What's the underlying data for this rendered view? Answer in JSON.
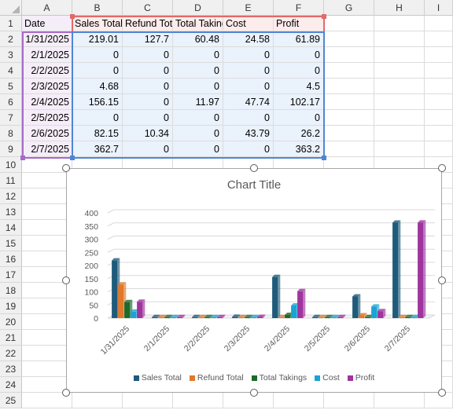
{
  "sheet": {
    "columns": [
      "A",
      "B",
      "C",
      "D",
      "E",
      "F",
      "G",
      "H",
      "I"
    ],
    "rows": [
      "1",
      "2",
      "3",
      "4",
      "5",
      "6",
      "7",
      "8",
      "9",
      "10",
      "11",
      "12",
      "13",
      "14",
      "15",
      "16",
      "17",
      "18",
      "19",
      "20",
      "21",
      "22",
      "23",
      "24",
      "25"
    ],
    "headers": [
      "Date",
      "Sales Total",
      "Refund Total",
      "Total Takings",
      "Cost",
      "Profit"
    ],
    "data": [
      [
        "1/31/2025",
        "219.01",
        "127.7",
        "60.48",
        "24.58",
        "61.89"
      ],
      [
        "2/1/2025",
        "0",
        "0",
        "0",
        "0",
        "0"
      ],
      [
        "2/2/2025",
        "0",
        "0",
        "0",
        "0",
        "0"
      ],
      [
        "2/3/2025",
        "4.68",
        "0",
        "0",
        "0",
        "4.5"
      ],
      [
        "2/4/2025",
        "156.15",
        "0",
        "11.97",
        "47.74",
        "102.17"
      ],
      [
        "2/5/2025",
        "0",
        "0",
        "0",
        "0",
        "0"
      ],
      [
        "2/6/2025",
        "82.15",
        "10.34",
        "0",
        "43.79",
        "26.2"
      ],
      [
        "2/7/2025",
        "362.7",
        "0",
        "0",
        "0",
        "363.2"
      ]
    ]
  },
  "chart": {
    "title": "Chart Title"
  },
  "chart_data": {
    "type": "bar",
    "title": "Chart Title",
    "categories": [
      "1/31/2025",
      "2/1/2025",
      "2/2/2025",
      "2/3/2025",
      "2/4/2025",
      "2/5/2025",
      "2/6/2025",
      "2/7/2025"
    ],
    "series": [
      {
        "name": "Sales Total",
        "color": "#1f5a7a",
        "values": [
          219.01,
          0,
          0,
          4.68,
          156.15,
          0,
          82.15,
          362.7
        ]
      },
      {
        "name": "Refund Total",
        "color": "#e0782a",
        "values": [
          127.7,
          0,
          0,
          0,
          0,
          0,
          10.34,
          0
        ]
      },
      {
        "name": "Total Takings",
        "color": "#1c6b2a",
        "values": [
          60.48,
          0,
          0,
          0,
          11.97,
          0,
          0,
          0
        ]
      },
      {
        "name": "Cost",
        "color": "#1aa3d4",
        "values": [
          24.58,
          0,
          0,
          0,
          47.74,
          0,
          43.79,
          0
        ]
      },
      {
        "name": "Profit",
        "color": "#a0349e",
        "values": [
          61.89,
          0,
          0,
          4.5,
          102.17,
          0,
          26.2,
          363.2
        ]
      }
    ],
    "yticks": [
      "0",
      "50",
      "100",
      "150",
      "200",
      "250",
      "300",
      "350",
      "400"
    ],
    "ylim": [
      0,
      400
    ],
    "grid": true,
    "legend": "bottom"
  }
}
